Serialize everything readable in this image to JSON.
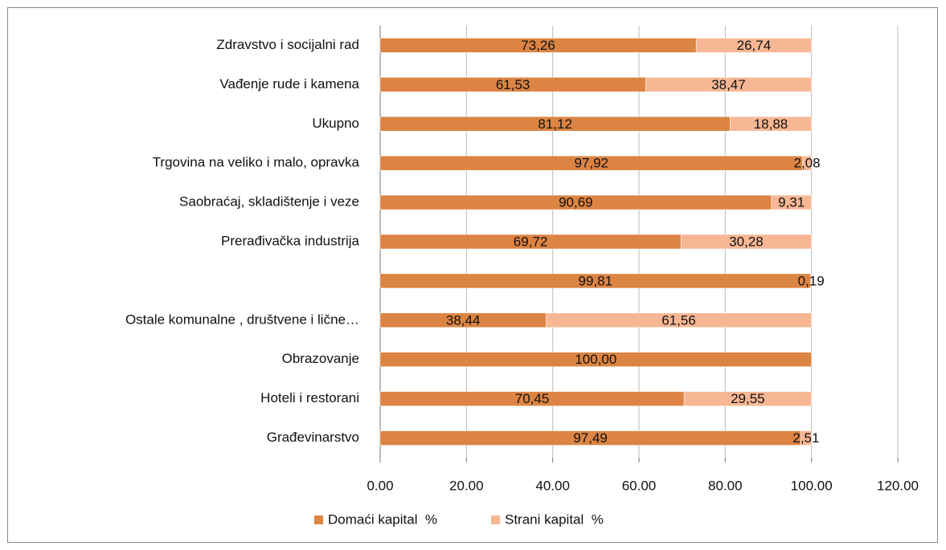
{
  "chart_data": {
    "type": "hbar_stacked",
    "categories": [
      "Zdravstvo i socijalni rad",
      "Vađenje rude i kamena",
      "Ukupno",
      "Trgovina na veliko i malo, opravka",
      "Saobraćaj, skladištenje i veze",
      "Prerađivačka industrija",
      null,
      "Ostale komunalne , društvene i lične…",
      "Obrazovanje",
      "Hoteli i restorani",
      "Građevinarstvo"
    ],
    "series": [
      {
        "name": "Domaći kapital  %",
        "color": "#dc8443",
        "values": [
          73.26,
          61.53,
          81.12,
          97.92,
          90.69,
          69.72,
          99.81,
          38.44,
          100.0,
          70.45,
          97.49
        ],
        "value_labels": [
          "73,26",
          "61,53",
          "81,12",
          "97,92",
          "90,69",
          "69,72",
          "99,81",
          "38,44",
          "100,00",
          "70,45",
          "97,49"
        ]
      },
      {
        "name": "Strani kapital  %",
        "color": "#f7b794",
        "values": [
          26.74,
          38.47,
          18.88,
          2.08,
          9.31,
          30.28,
          0.19,
          61.56,
          0,
          29.55,
          2.51
        ],
        "value_labels": [
          "26,74",
          "38,47",
          "18,88",
          "2,08",
          "9,31",
          "30,28",
          "0,19",
          "61,56",
          null,
          "29,55",
          "2,51"
        ]
      }
    ],
    "xlim": [
      0,
      120
    ],
    "xticks": [
      {
        "value": 0,
        "label": "0.00"
      },
      {
        "value": 20,
        "label": "20.00"
      },
      {
        "value": 40,
        "label": "40.00"
      },
      {
        "value": 60,
        "label": "60.00"
      },
      {
        "value": 80,
        "label": "80.00"
      },
      {
        "value": 100,
        "label": "100.00"
      },
      {
        "value": 120,
        "label": "120.00"
      }
    ],
    "grid": true,
    "legend": "bottom"
  }
}
